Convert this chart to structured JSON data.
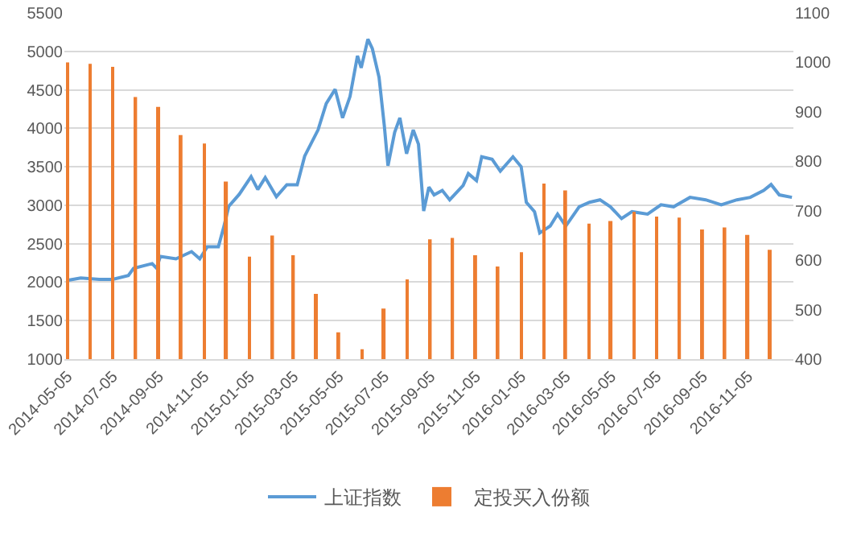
{
  "chart_data": {
    "type": "line",
    "xlim": [
      "2014-05-01",
      "2017-01-05"
    ],
    "xticks": [
      "2014-05-05",
      "2014-07-05",
      "2014-09-05",
      "2014-11-05",
      "2015-01-05",
      "2015-03-05",
      "2015-05-05",
      "2015-07-05",
      "2015-09-05",
      "2015-11-05",
      "2016-01-05",
      "2016-03-05",
      "2016-05-05",
      "2016-07-05",
      "2016-09-05",
      "2016-11-05"
    ],
    "ylim": [
      1000,
      5500
    ],
    "yticks": [
      1000,
      1500,
      2000,
      2500,
      3000,
      3500,
      4000,
      4500,
      5000,
      5500
    ],
    "y2lim": [
      400,
      1100
    ],
    "y2ticks": [
      400,
      500,
      600,
      700,
      800,
      900,
      1000,
      1100
    ],
    "grid": "y",
    "legend": "bottom",
    "series": [
      {
        "name": "上证指数",
        "color": "#5b9bd5",
        "x": [
          "2014-05-05",
          "2014-05-23",
          "2014-06-17",
          "2014-07-05",
          "2014-07-26",
          "2014-08-02",
          "2014-08-27",
          "2014-09-02",
          "2014-09-07",
          "2014-09-28",
          "2014-10-19",
          "2014-10-30",
          "2014-11-09",
          "2014-11-24",
          "2014-12-01",
          "2014-12-08",
          "2014-12-22",
          "2015-01-07",
          "2015-01-16",
          "2015-01-26",
          "2015-02-10",
          "2015-02-24",
          "2015-03-10",
          "2015-03-20",
          "2015-04-07",
          "2015-04-18",
          "2015-04-30",
          "2015-05-10",
          "2015-05-20",
          "2015-05-30",
          "2015-06-04",
          "2015-06-13",
          "2015-06-19",
          "2015-06-28",
          "2015-07-05",
          "2015-07-10",
          "2015-07-19",
          "2015-07-26",
          "2015-08-04",
          "2015-08-13",
          "2015-08-20",
          "2015-08-27",
          "2015-09-03",
          "2015-09-10",
          "2015-09-21",
          "2015-10-01",
          "2015-10-19",
          "2015-10-26",
          "2015-11-06",
          "2015-11-13",
          "2015-11-27",
          "2015-12-08",
          "2015-12-25",
          "2016-01-05",
          "2016-01-12",
          "2016-01-23",
          "2016-01-30",
          "2016-02-13",
          "2016-02-23",
          "2016-03-05",
          "2016-03-23",
          "2016-04-06",
          "2016-04-20",
          "2016-05-04",
          "2016-05-19",
          "2016-06-02",
          "2016-06-23",
          "2016-07-11",
          "2016-07-28",
          "2016-08-19",
          "2016-09-09",
          "2016-09-30",
          "2016-10-21",
          "2016-11-08",
          "2016-11-26",
          "2016-12-06",
          "2016-12-17",
          "2017-01-03"
        ],
        "values": [
          2024,
          2055,
          2037,
          2037,
          2086,
          2180,
          2241,
          2180,
          2335,
          2303,
          2397,
          2303,
          2459,
          2459,
          2707,
          2986,
          3141,
          3371,
          3204,
          3359,
          3110,
          3266,
          3266,
          3638,
          3979,
          4321,
          4507,
          4135,
          4414,
          4941,
          4786,
          5159,
          5035,
          4662,
          4041,
          3514,
          3948,
          4135,
          3669,
          3979,
          3793,
          2924,
          3235,
          3134,
          3192,
          3070,
          3256,
          3411,
          3320,
          3629,
          3597,
          3443,
          3629,
          3501,
          3038,
          2916,
          2639,
          2729,
          2884,
          2729,
          2980,
          3038,
          3070,
          2980,
          2826,
          2916,
          2884,
          3006,
          2980,
          3102,
          3070,
          3006,
          3070,
          3102,
          3192,
          3269,
          3134,
          3102
        ]
      },
      {
        "name": "定投买入份额",
        "type": "bar",
        "axis": "y2",
        "color": "#ed7d31",
        "x": [
          "2014-05-05",
          "2014-06-05",
          "2014-07-05",
          "2014-08-05",
          "2014-09-05",
          "2014-10-05",
          "2014-11-05",
          "2014-12-05",
          "2015-01-05",
          "2015-02-05",
          "2015-03-05",
          "2015-04-05",
          "2015-05-05",
          "2015-06-05",
          "2015-07-05",
          "2015-08-05",
          "2015-09-05",
          "2015-10-05",
          "2015-11-05",
          "2015-12-05",
          "2016-01-05",
          "2016-02-05",
          "2016-03-05",
          "2016-04-05",
          "2016-05-05",
          "2016-06-05",
          "2016-07-05",
          "2016-08-05",
          "2016-09-05",
          "2016-10-05",
          "2016-11-05",
          "2016-12-05"
        ],
        "values": [
          1000,
          997,
          991,
          930,
          910,
          853,
          836,
          759,
          607,
          650,
          610,
          532,
          454,
          420,
          502,
          561,
          642,
          645,
          610,
          587,
          616,
          755,
          741,
          674,
          679,
          698,
          688,
          686,
          662,
          666,
          651,
          621
        ]
      }
    ]
  }
}
